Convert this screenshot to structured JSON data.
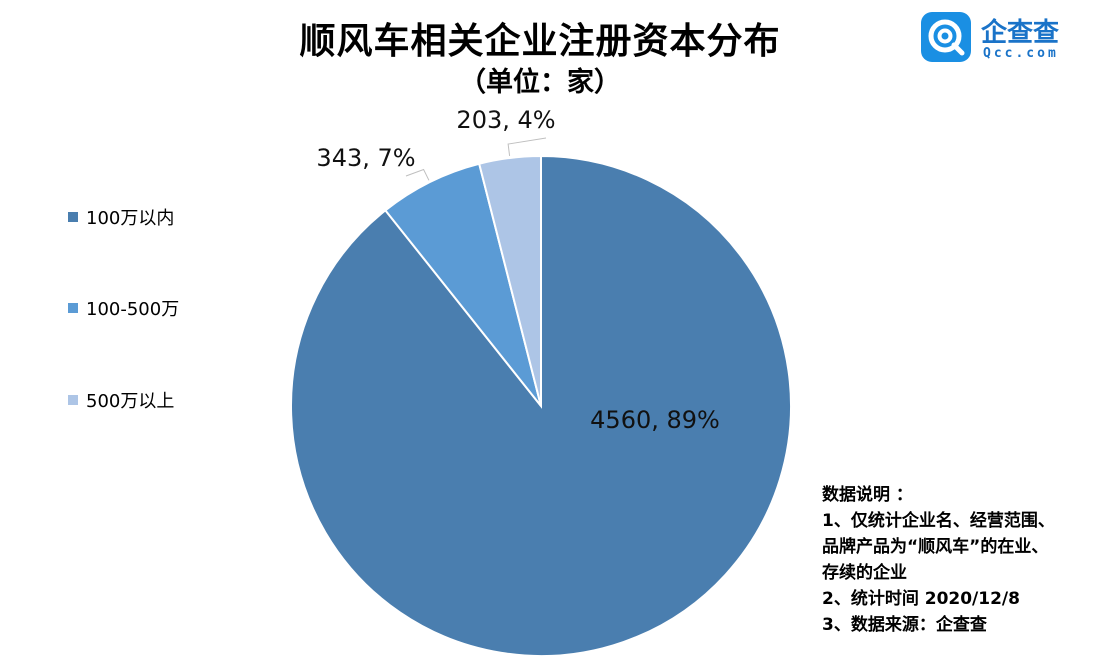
{
  "title": "顺风车相关企业注册资本分布",
  "subtitle": "（单位：家）",
  "logo": {
    "text": "企查查",
    "sub": "Qcc.com"
  },
  "chart_data": {
    "type": "pie",
    "start_angle_deg": 0,
    "direction": "clockwise",
    "legend_position": "left",
    "slices": [
      {
        "label": "100万以内",
        "value": 4560,
        "percent": "89%",
        "data_label": "4560, 89%",
        "color": "#4a7eaf"
      },
      {
        "label": "100-500万",
        "value": 343,
        "percent": "7%",
        "data_label": "343, 7%",
        "color": "#5b9bd5"
      },
      {
        "label": "500万以上",
        "value": 203,
        "percent": "4%",
        "data_label": "203, 4%",
        "color": "#adc5e6"
      }
    ]
  },
  "notes": {
    "heading": "数据说明 ：",
    "lines": [
      "1、仅统计企业名、经营范围、",
      "品牌产品为“顺风车”的在业、",
      "存续的企业",
      "2、统计时间 2020/12/8",
      "3、数据来源：企查查"
    ]
  }
}
